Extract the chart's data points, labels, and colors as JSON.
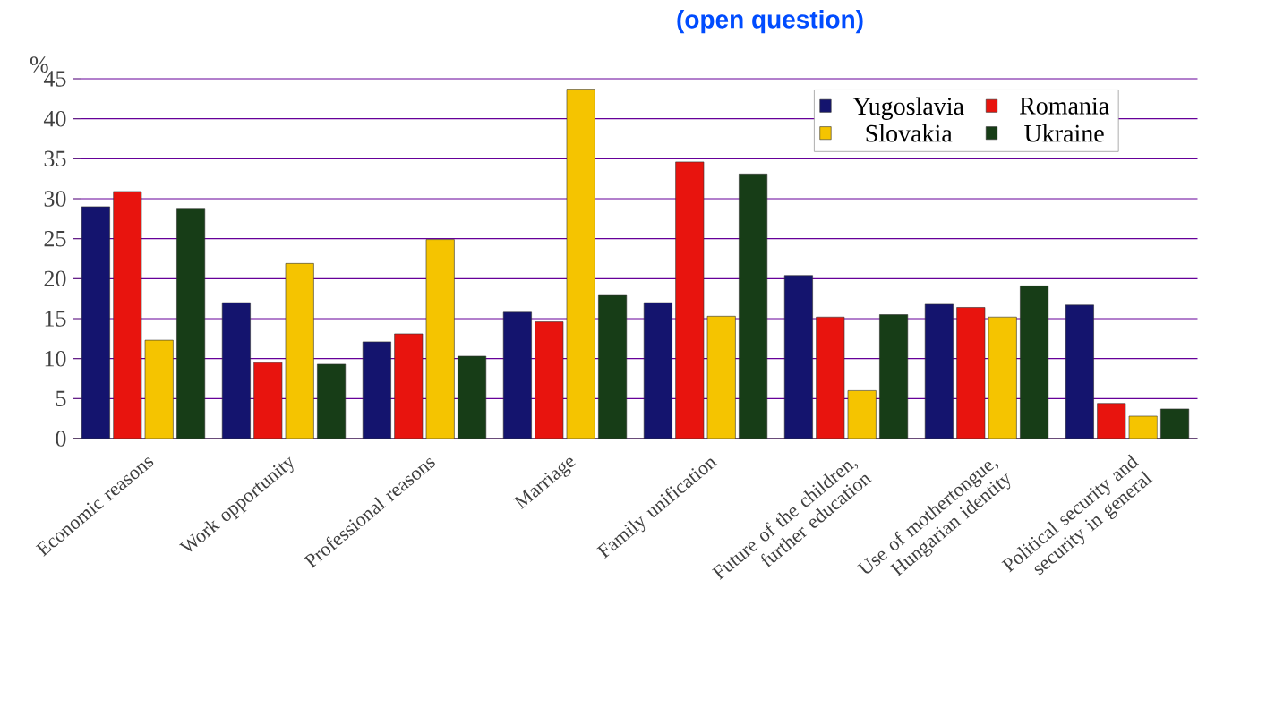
{
  "chart_data": {
    "type": "bar",
    "title": "(open question)",
    "ylabel": "%",
    "categories": [
      "Economic reasons",
      "Work opportunity",
      "Professional reasons",
      "Marriage",
      "Family unification",
      "Future of the children, further education",
      "Use of mothertongue, Hungarian identity",
      "Political security and security in general"
    ],
    "series": [
      {
        "name": "Yugoslavia",
        "color": "#14146e",
        "values": [
          29.0,
          17.0,
          12.1,
          15.8,
          17.0,
          20.4,
          16.8,
          16.7
        ]
      },
      {
        "name": "Romania",
        "color": "#e8140e",
        "values": [
          30.9,
          9.5,
          13.1,
          14.6,
          34.6,
          15.2,
          16.4,
          4.4
        ]
      },
      {
        "name": "Slovakia",
        "color": "#f5c400",
        "values": [
          12.3,
          21.9,
          24.9,
          43.7,
          15.3,
          6.0,
          15.2,
          2.8
        ]
      },
      {
        "name": "Ukraine",
        "color": "#173d17",
        "values": [
          28.8,
          9.3,
          10.3,
          17.9,
          33.1,
          15.5,
          19.1,
          3.7
        ]
      }
    ],
    "ylim": [
      0,
      45
    ],
    "yticks": [
      0,
      5,
      10,
      15,
      20,
      25,
      30,
      35,
      40,
      45
    ],
    "grid": "y",
    "legend": "top right"
  }
}
